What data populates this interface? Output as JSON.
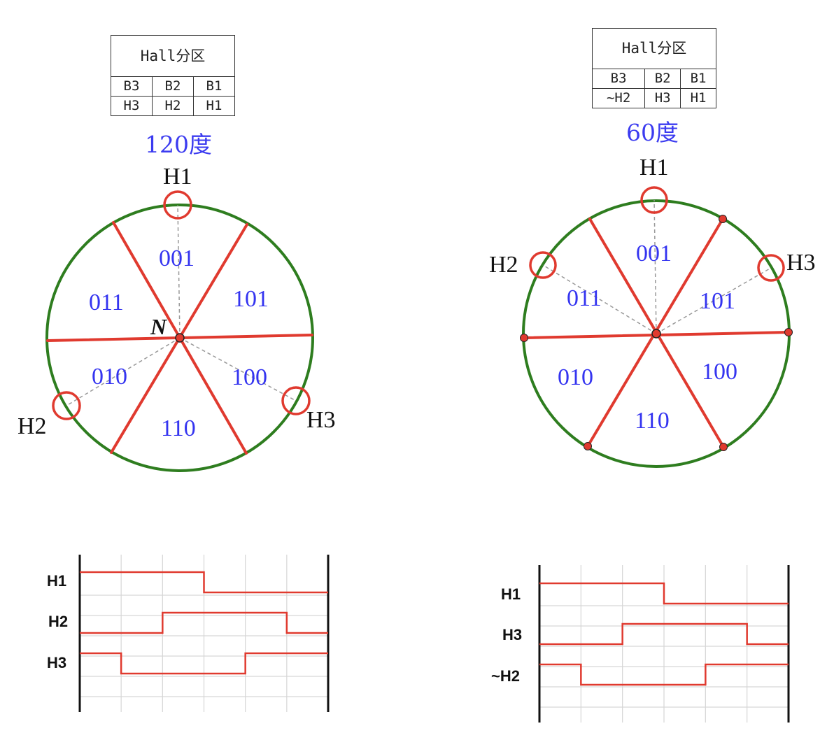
{
  "left": {
    "table": {
      "title": "Hall分区",
      "row1": [
        "B3",
        "B2",
        "B1"
      ],
      "row2": [
        "H3",
        "H2",
        "H1"
      ]
    },
    "angle_label": "120度",
    "sensors": [
      "H1",
      "H2",
      "H3"
    ],
    "center_label": "N",
    "sectors": [
      "001",
      "101",
      "100",
      "110",
      "010",
      "011"
    ],
    "waveform": {
      "signals": [
        "H1",
        "H2",
        "H3"
      ],
      "levels": [
        [
          1,
          1,
          1,
          0,
          0,
          0
        ],
        [
          0,
          0,
          1,
          1,
          1,
          0
        ],
        [
          1,
          0,
          0,
          0,
          1,
          1
        ]
      ]
    }
  },
  "right": {
    "table": {
      "title": "Hall分区",
      "row1": [
        "B3",
        "B2",
        "B1"
      ],
      "row2": [
        "~H2",
        "H3",
        "H1"
      ]
    },
    "angle_label": "60度",
    "sensors": [
      "H1",
      "H2",
      "H3"
    ],
    "sectors": [
      "001",
      "101",
      "100",
      "110",
      "010",
      "011"
    ],
    "waveform": {
      "signals": [
        "H1",
        "H3",
        "~H2"
      ],
      "levels": [
        [
          1,
          1,
          1,
          0,
          0,
          0
        ],
        [
          0,
          0,
          1,
          1,
          1,
          0
        ],
        [
          1,
          0,
          0,
          0,
          1,
          1
        ]
      ]
    }
  },
  "colors": {
    "circle": "#2e7d1f",
    "red": "#e03a2f",
    "label_blue": "#3434f0",
    "grid": "#d6d6d6"
  }
}
